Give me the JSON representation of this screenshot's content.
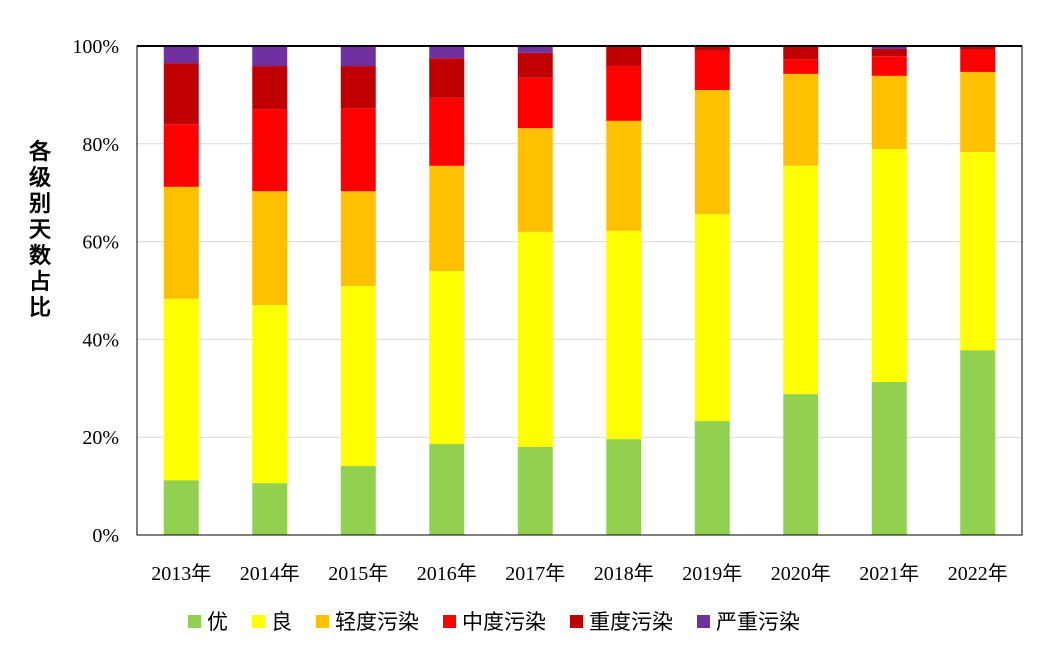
{
  "chart_data": {
    "type": "bar",
    "stacked": true,
    "ylabel": "各级别天数占比",
    "xlabel": "",
    "ylim": [
      0,
      100
    ],
    "yticks": [
      "0%",
      "20%",
      "40%",
      "60%",
      "80%",
      "100%"
    ],
    "grid": true,
    "legend_position": "bottom",
    "categories": [
      "2013年",
      "2014年",
      "2015年",
      "2016年",
      "2017年",
      "2018年",
      "2019年",
      "2020年",
      "2021年",
      "2022年"
    ],
    "series": [
      {
        "name": "优",
        "color": "#92D050",
        "values": [
          11.2,
          10.6,
          14.1,
          18.6,
          18.0,
          19.6,
          23.3,
          28.8,
          31.3,
          37.8
        ]
      },
      {
        "name": "良",
        "color": "#FFFF00",
        "values": [
          37.1,
          36.4,
          36.8,
          35.4,
          44.0,
          42.6,
          42.3,
          46.7,
          47.6,
          40.5
        ]
      },
      {
        "name": "轻度污染",
        "color": "#FFC000",
        "values": [
          22.9,
          23.3,
          19.4,
          21.5,
          21.2,
          22.5,
          25.4,
          18.8,
          15.0,
          16.4
        ]
      },
      {
        "name": "中度污染",
        "color": "#FF0000",
        "values": [
          12.8,
          16.8,
          17.0,
          13.9,
          10.3,
          11.2,
          8.0,
          3.0,
          4.0,
          4.5
        ]
      },
      {
        "name": "重度污染",
        "color": "#C00000",
        "values": [
          12.5,
          8.8,
          8.6,
          8.1,
          5.1,
          3.9,
          1.0,
          2.7,
          1.5,
          0.6
        ]
      },
      {
        "name": "严重污染",
        "color": "#7030A0",
        "values": [
          3.5,
          4.1,
          4.1,
          2.5,
          1.4,
          0.2,
          0,
          0,
          0.6,
          0.2
        ]
      }
    ]
  }
}
